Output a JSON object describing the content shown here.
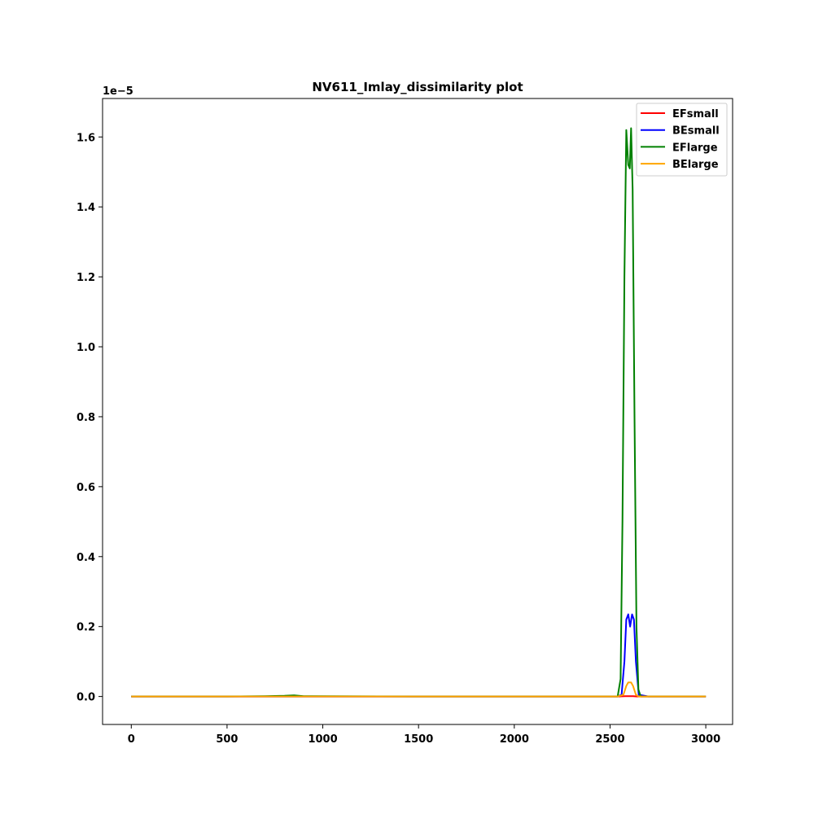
{
  "chart_data": {
    "type": "line",
    "title": "NV611_Imlay_dissimilarity plot",
    "xlabel": "",
    "ylabel": "",
    "y_offset_text": "1e−5",
    "xlim": [
      -150,
      3140
    ],
    "ylim": [
      -0.08,
      1.71
    ],
    "y_scale_note": "values in units of 1e-5",
    "xticks": [
      0,
      500,
      1000,
      1500,
      2000,
      2500,
      3000
    ],
    "xtick_labels": [
      "0",
      "500",
      "1000",
      "1500",
      "2000",
      "2500",
      "3000"
    ],
    "yticks": [
      0.0,
      0.2,
      0.4,
      0.6,
      0.8,
      1.0,
      1.2,
      1.4,
      1.6
    ],
    "ytick_labels": [
      "0.0",
      "0.2",
      "0.4",
      "0.6",
      "0.8",
      "1.0",
      "1.2",
      "1.4",
      "1.6"
    ],
    "grid": false,
    "legend_position": "top-right",
    "series": [
      {
        "name": "EFsmall",
        "color": "#ff0000",
        "x": [
          0,
          500,
          800,
          850,
          900,
          1500,
          2000,
          2500,
          2550,
          2580,
          2600,
          2620,
          2640,
          2700,
          3000
        ],
        "y": [
          0,
          0,
          0,
          0,
          0,
          0,
          0,
          0,
          0,
          0.001,
          0.001,
          0.001,
          0,
          0,
          0
        ]
      },
      {
        "name": "BEsmall",
        "color": "#0000ff",
        "x": [
          0,
          500,
          800,
          850,
          900,
          1500,
          2000,
          2540,
          2560,
          2575,
          2585,
          2595,
          2605,
          2615,
          2625,
          2635,
          2650,
          2700,
          3000
        ],
        "y": [
          0,
          0,
          0,
          0,
          0,
          0,
          0,
          0,
          0.005,
          0.1,
          0.22,
          0.235,
          0.2,
          0.235,
          0.22,
          0.1,
          0.005,
          0,
          0
        ]
      },
      {
        "name": "EFlarge",
        "color": "#008000",
        "x": [
          0,
          500,
          700,
          800,
          850,
          900,
          1500,
          2000,
          2540,
          2555,
          2565,
          2575,
          2585,
          2595,
          2603,
          2610,
          2618,
          2628,
          2638,
          2648,
          2660,
          2700,
          3000
        ],
        "y": [
          0,
          0,
          0.001,
          0.002,
          0.003,
          0.001,
          0,
          0,
          0,
          0.05,
          0.5,
          1.2,
          1.62,
          1.52,
          1.51,
          1.625,
          1.45,
          0.8,
          0.2,
          0.02,
          0,
          0,
          0
        ]
      },
      {
        "name": "BElarge",
        "color": "#ffa500",
        "x": [
          0,
          500,
          800,
          850,
          900,
          1500,
          2000,
          2540,
          2570,
          2585,
          2595,
          2610,
          2620,
          2635,
          2650,
          2700,
          3000
        ],
        "y": [
          0,
          0,
          0,
          0,
          0,
          0,
          0,
          0,
          0.005,
          0.03,
          0.04,
          0.04,
          0.03,
          0.005,
          0,
          0,
          0
        ]
      }
    ]
  }
}
